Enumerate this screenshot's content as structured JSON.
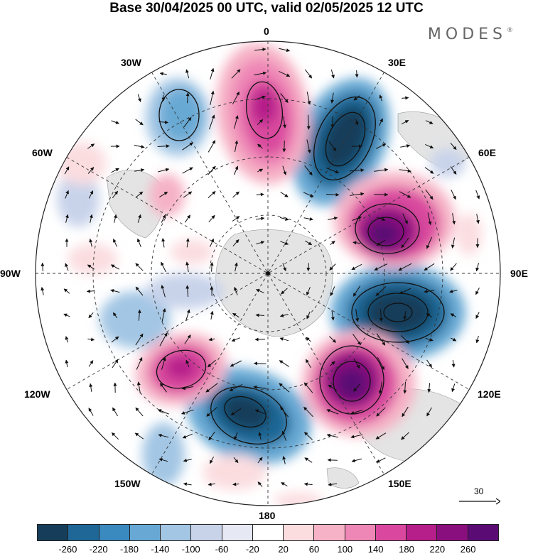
{
  "title": "Base 30/04/2025 00 UTC, valid 02/05/2025 12 UTC",
  "logo": "MODES",
  "logo_mark": "®",
  "longitudes": {
    "top": "0",
    "top_right": "30E",
    "upper_right": "60E",
    "right": "90E",
    "lower_right": "120E",
    "bottom_right": "150E",
    "bottom": "180",
    "bottom_left": "150W",
    "lower_left": "120W",
    "left": "90W",
    "upper_left": "60W",
    "top_left": "30W"
  },
  "reference_vector": "30",
  "colorbar": {
    "colors": [
      "#163e5a",
      "#1f6796",
      "#3a8ac0",
      "#67a9d4",
      "#a3c6e4",
      "#c8d3ea",
      "#e6e8f4",
      "#ffffff",
      "#fbdde0",
      "#f6b2c6",
      "#ee86b6",
      "#d9489e",
      "#b61e8a",
      "#8a0f7e",
      "#5a0c74"
    ],
    "ticks": [
      "-260",
      "-220",
      "-180",
      "-140",
      "-100",
      "-60",
      "-20",
      "20",
      "60",
      "100",
      "140",
      "180",
      "220",
      "260"
    ]
  }
}
